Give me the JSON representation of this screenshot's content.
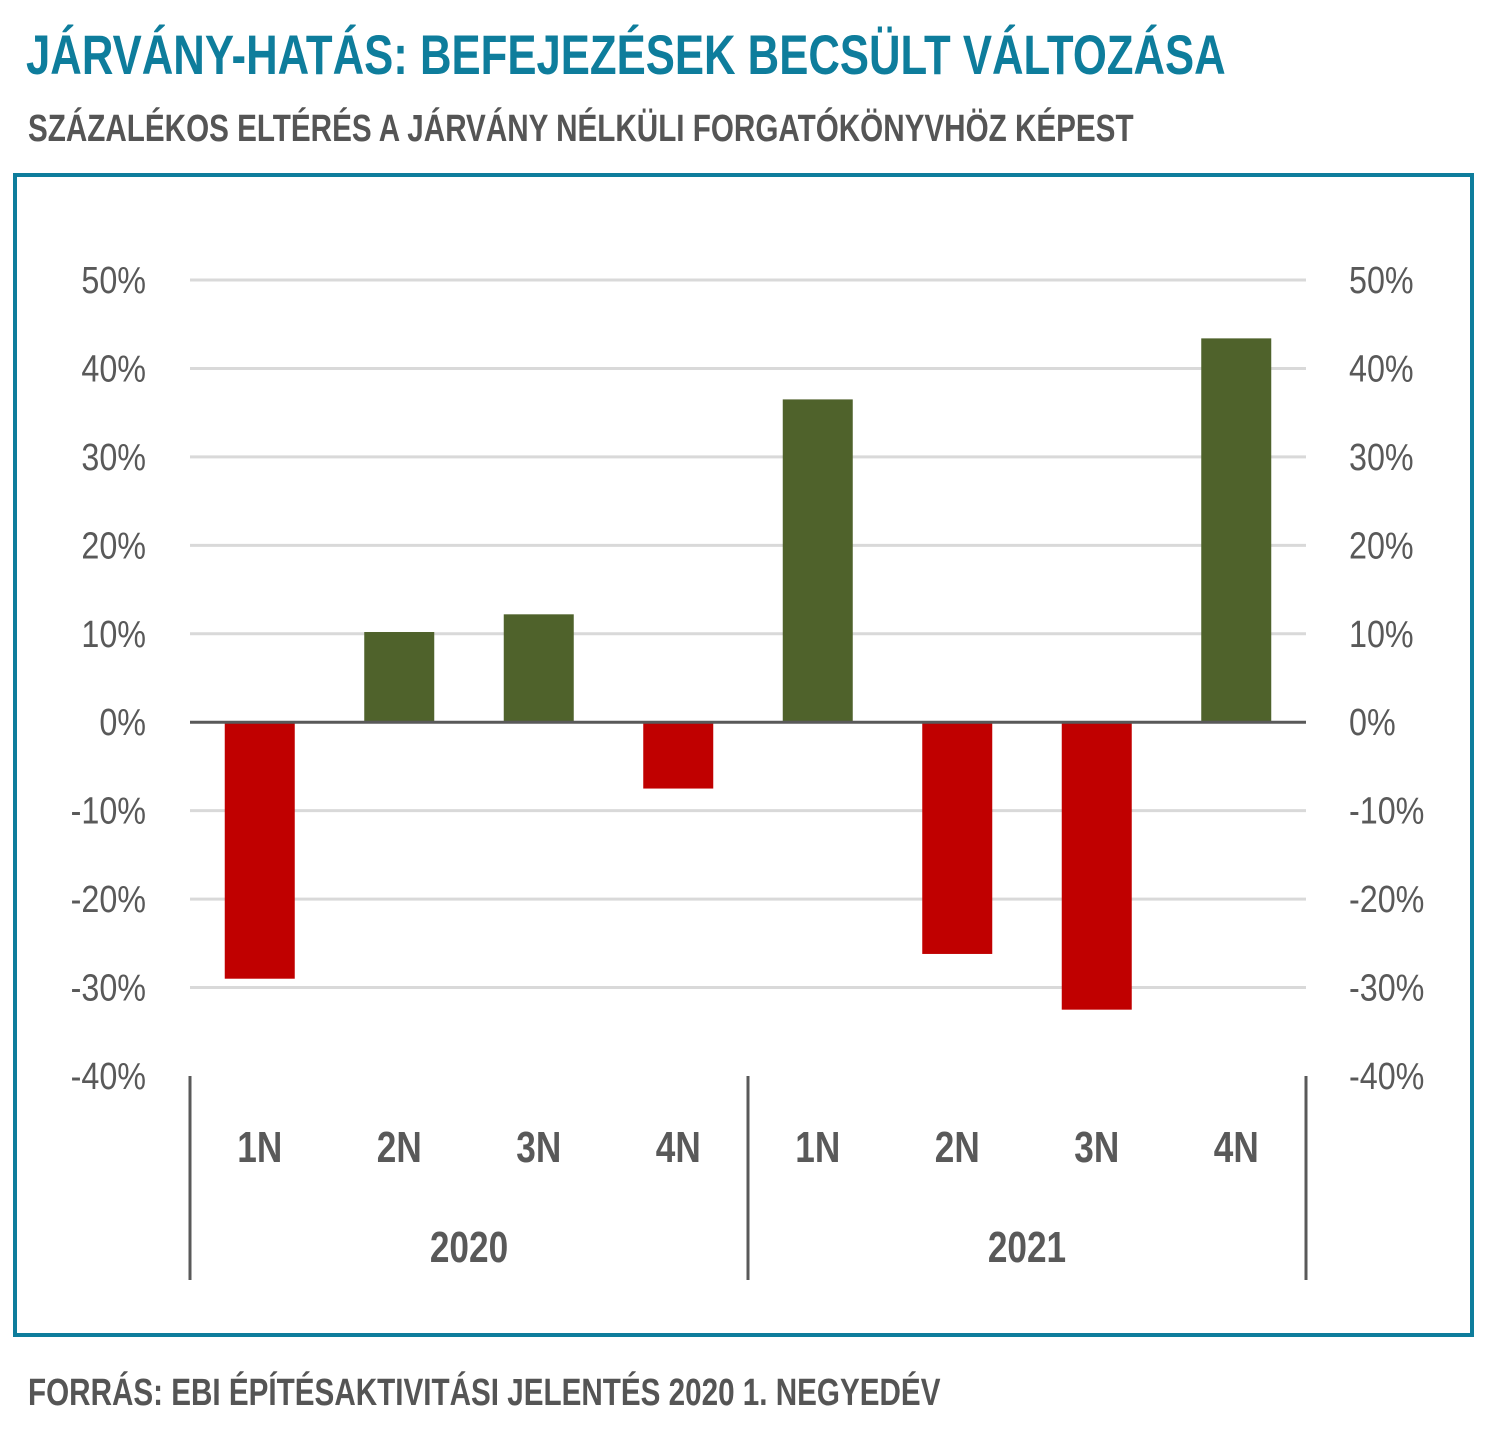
{
  "header": {
    "title": "JÁRVÁNY-HATÁS: BEFEJEZÉSEK BECSÜLT VÁLTOZÁSA",
    "subtitle": "SZÁZALÉKOS ELTÉRÉS A JÁRVÁNY NÉLKÜLI FORGATÓKÖNYVHÖZ KÉPEST"
  },
  "footer": {
    "source": "FORRÁS: EBI ÉPÍTÉSAKTIVITÁSI JELENTÉS 2020 1. NEGYEDÉV"
  },
  "colors": {
    "title": "#0e7d9c",
    "positive": "#4f622b",
    "negative": "#c00000",
    "grid": "#d9d9d9",
    "axis": "#595959"
  },
  "chart_data": {
    "type": "bar",
    "title": "JÁRVÁNY-HATÁS: BEFEJEZÉSEK BECSÜLT VÁLTOZÁSA",
    "subtitle": "SZÁZALÉKOS ELTÉRÉS A JÁRVÁNY NÉLKÜLI FORGATÓKÖNYVHÖZ KÉPEST",
    "categories": [
      "1N",
      "2N",
      "3N",
      "4N",
      "1N",
      "2N",
      "3N",
      "4N"
    ],
    "groups": [
      {
        "label": "2020",
        "count": 4
      },
      {
        "label": "2021",
        "count": 4
      }
    ],
    "values": [
      -29,
      10.2,
      12.2,
      -7.5,
      36.5,
      -26.2,
      -32.5,
      43.4
    ],
    "ylim": [
      -40,
      50
    ],
    "yticks": [
      "50%",
      "40%",
      "30%",
      "20%",
      "10%",
      "0%",
      "-10%",
      "-20%",
      "-30%",
      "-40%"
    ],
    "secondary_yticks": [
      "50%",
      "40%",
      "30%",
      "20%",
      "10%",
      "0%",
      "-10%",
      "-20%",
      "-30%",
      "-40%"
    ],
    "grid": true,
    "legend": "none",
    "xlabel": "",
    "ylabel": ""
  }
}
